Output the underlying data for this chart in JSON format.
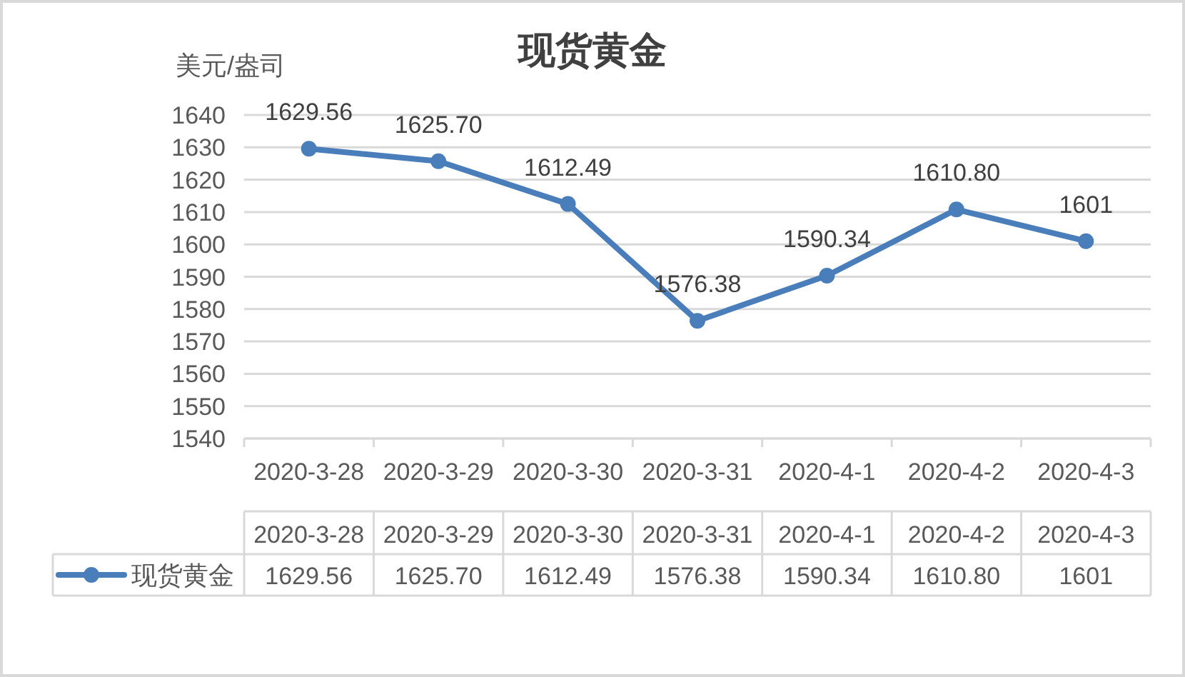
{
  "chart_data": {
    "type": "line",
    "title": "现货黄金",
    "ylabel": "美元/盎司",
    "categories": [
      "2020-3-28",
      "2020-3-29",
      "2020-3-30",
      "2020-3-31",
      "2020-4-1",
      "2020-4-2",
      "2020-4-3"
    ],
    "series": [
      {
        "name": "现货黄金",
        "color": "#4a7ebb",
        "values": [
          1629.56,
          1625.7,
          1612.49,
          1576.38,
          1590.34,
          1610.8,
          1601
        ],
        "value_labels": [
          "1629.56",
          "1625.70",
          "1612.49",
          "1576.38",
          "1590.34",
          "1610.80",
          "1601"
        ]
      }
    ],
    "ylim": [
      1540,
      1640
    ],
    "yticks": [
      1540,
      1550,
      1560,
      1570,
      1580,
      1590,
      1600,
      1610,
      1620,
      1630,
      1640
    ],
    "grid": "y",
    "legend": "bottom",
    "marker": "circle",
    "line_style": "solid"
  }
}
